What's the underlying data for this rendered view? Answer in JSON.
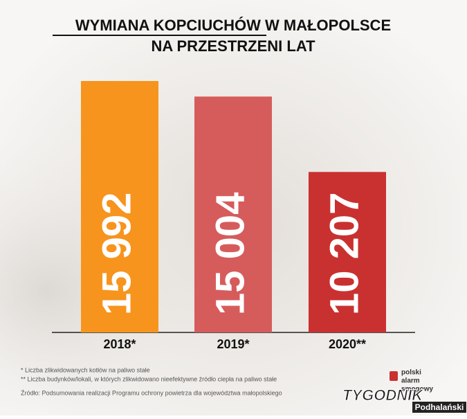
{
  "chart_data": {
    "type": "bar",
    "title": [
      "WYMIANA KOPCIUCHÓW W MAŁOPOLSCE",
      "NA PRZESTRZENI LAT"
    ],
    "categories": [
      "2018*",
      "2019*",
      "2020**"
    ],
    "values": [
      15992,
      15004,
      10207
    ],
    "value_labels": [
      "15 992",
      "15 004",
      "10 207"
    ],
    "colors": [
      "#f7941d",
      "#d65c5c",
      "#c93130"
    ],
    "footnotes": [
      "*  Liczba zlikwidowanych kotłów na paliwo stałe",
      "** Liczba budynków/lokali, w których zlikwidowano nieefektywne źródło ciepła na paliwo stałe",
      "Źródło: Podsumowania realizacji Programu ochrony powietrza dla województwa małopolskiego"
    ],
    "logo": [
      "polski",
      "alarm",
      "smogowy"
    ],
    "watermark": [
      "TYGODNIK",
      "Podhalański"
    ]
  }
}
